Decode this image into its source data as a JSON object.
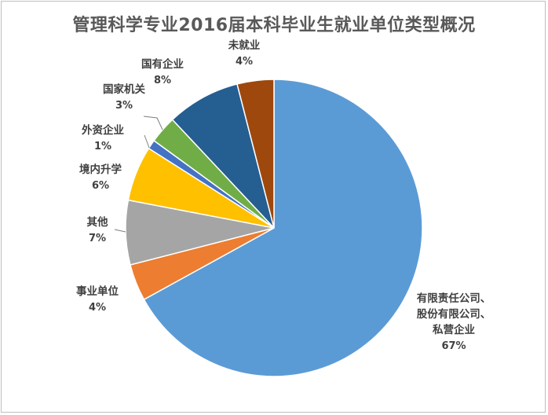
{
  "chart_data": {
    "type": "pie",
    "title": "管理科学专业2016届本科毕业生就业单位类型概况",
    "slices": [
      {
        "label": [
          "有限责任公司、",
          "股份有限公司、",
          "私营企业"
        ],
        "value": 67,
        "value_label": "67%",
        "color": "#5B9BD5"
      },
      {
        "label": [
          "事业单位"
        ],
        "value": 4,
        "value_label": "4%",
        "color": "#ED7D31"
      },
      {
        "label": [
          "其他"
        ],
        "value": 7,
        "value_label": "7%",
        "color": "#A5A5A5"
      },
      {
        "label": [
          "境内升学"
        ],
        "value": 6,
        "value_label": "6%",
        "color": "#FFC000"
      },
      {
        "label": [
          "外资企业"
        ],
        "value": 1,
        "value_label": "1%",
        "color": "#4472C4"
      },
      {
        "label": [
          "国家机关"
        ],
        "value": 3,
        "value_label": "3%",
        "color": "#70AD47"
      },
      {
        "label": [
          "国有企业"
        ],
        "value": 8,
        "value_label": "8%",
        "color": "#255E91"
      },
      {
        "label": [
          "未就业"
        ],
        "value": 4,
        "value_label": "4%",
        "color": "#9E480E"
      }
    ],
    "legend": "none"
  }
}
